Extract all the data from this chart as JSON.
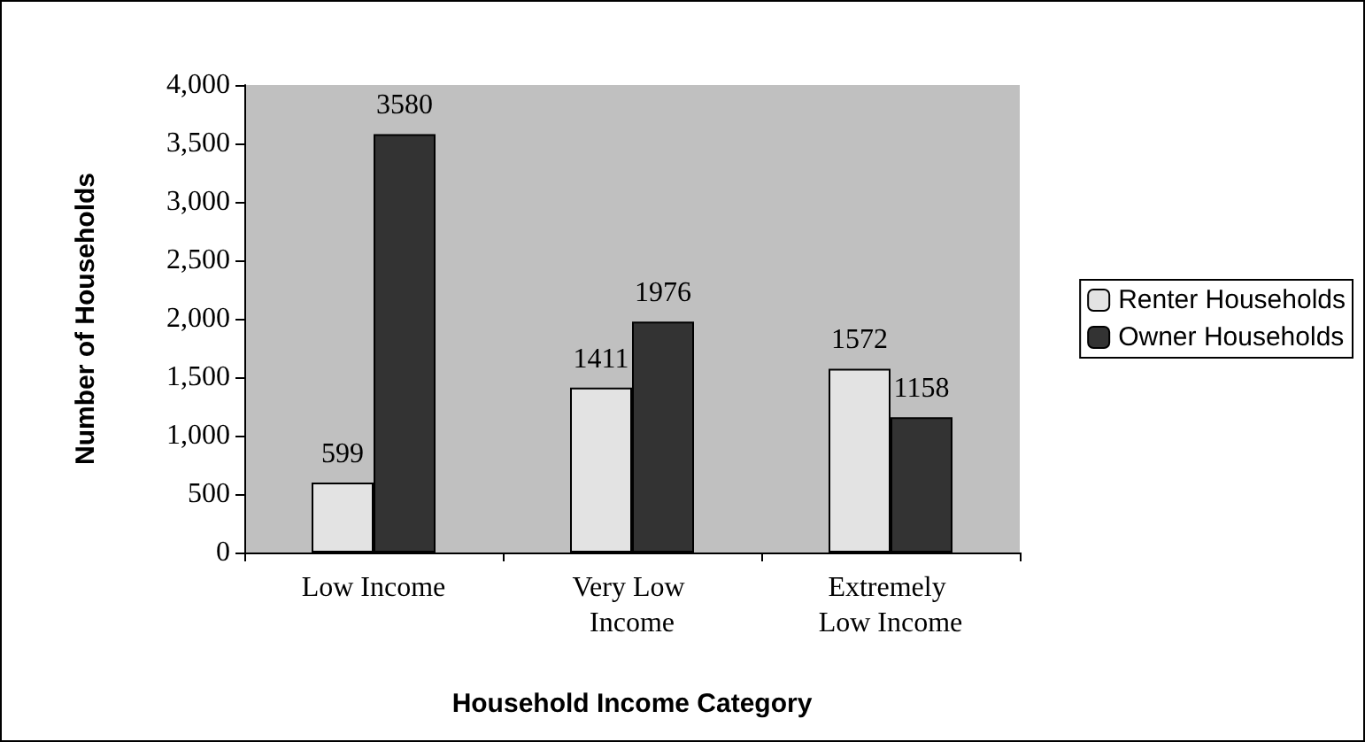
{
  "chart_data": {
    "type": "bar",
    "xlabel": "Household Income Category",
    "ylabel": "Number of Households",
    "categories": [
      "Low Income",
      "Very Low Income",
      "Extremely Low Income"
    ],
    "series": [
      {
        "name": "Renter Households",
        "color": "#e3e3e3",
        "values": [
          599,
          1411,
          1572
        ]
      },
      {
        "name": "Owner Households",
        "color": "#333333",
        "values": [
          3580,
          1976,
          1158
        ]
      }
    ],
    "ylim": [
      0,
      4000
    ],
    "yticks": [
      0,
      500,
      {
        "value": 1000,
        "label": "1,000"
      },
      {
        "value": 1500,
        "label": "1,500"
      },
      {
        "value": 2000,
        "label": "2,000"
      },
      {
        "value": 2500,
        "label": "2,500"
      },
      {
        "value": 3000,
        "label": "3,000"
      },
      {
        "value": 3500,
        "label": "3,500"
      },
      {
        "value": 4000,
        "label": "4,000"
      }
    ],
    "data_labels": true,
    "grid": false,
    "legend": "right"
  }
}
